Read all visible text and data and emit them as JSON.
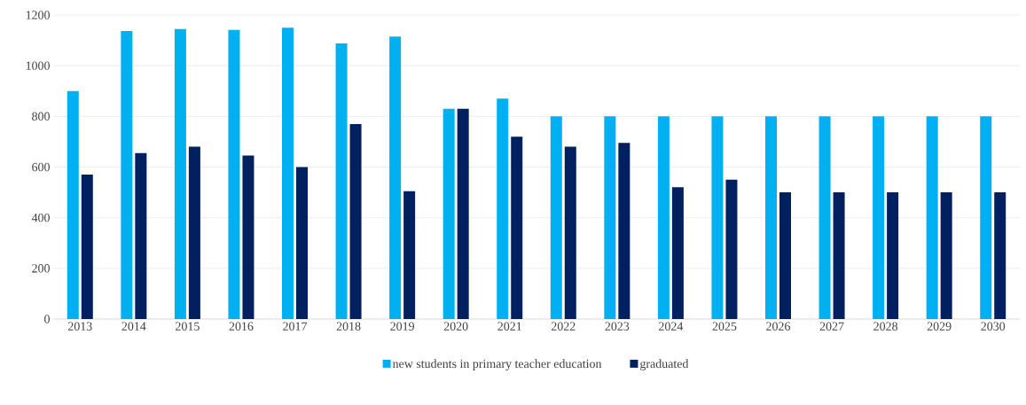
{
  "chart_data": {
    "type": "bar",
    "categories": [
      "2013",
      "2014",
      "2015",
      "2016",
      "2017",
      "2018",
      "2019",
      "2020",
      "2021",
      "2022",
      "2023",
      "2024",
      "2025",
      "2026",
      "2027",
      "2028",
      "2029",
      "2030"
    ],
    "series": [
      {
        "name": "new students in primary teacher education",
        "color": "#00b0f0",
        "values": [
          900,
          1137,
          1145,
          1141,
          1150,
          1088,
          1115,
          830,
          870,
          800,
          800,
          800,
          800,
          800,
          800,
          800,
          800,
          800
        ]
      },
      {
        "name": "graduated",
        "color": "#002060",
        "values": [
          570,
          655,
          680,
          645,
          600,
          770,
          505,
          830,
          720,
          680,
          695,
          520,
          550,
          500,
          500,
          500,
          500,
          500
        ]
      }
    ],
    "ylim": [
      0,
      1200
    ],
    "yticks": [
      0,
      200,
      400,
      600,
      800,
      1000,
      1200
    ],
    "grid": "y",
    "legend": "bottom"
  }
}
